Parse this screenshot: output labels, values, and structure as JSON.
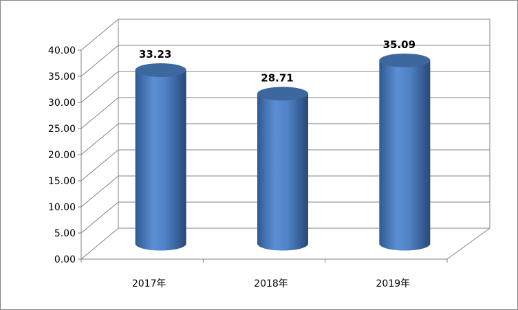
{
  "chart_data": {
    "type": "bar",
    "style": "3d-cylinder",
    "categories": [
      "2017年",
      "2018年",
      "2019年"
    ],
    "values": [
      33.23,
      28.71,
      35.09
    ],
    "data_labels": [
      "33.23",
      "28.71",
      "35.09"
    ],
    "title": "",
    "xlabel": "",
    "ylabel": "",
    "ylim": [
      0,
      40
    ],
    "yticks": [
      "0.00",
      "5.00",
      "10.00",
      "15.00",
      "20.00",
      "25.00",
      "30.00",
      "35.00",
      "40.00"
    ],
    "grid": true,
    "legend": "none",
    "colors": {
      "bar": "#4f81bd",
      "bar_dark": "#2c5282",
      "grid": "#808080"
    }
  }
}
